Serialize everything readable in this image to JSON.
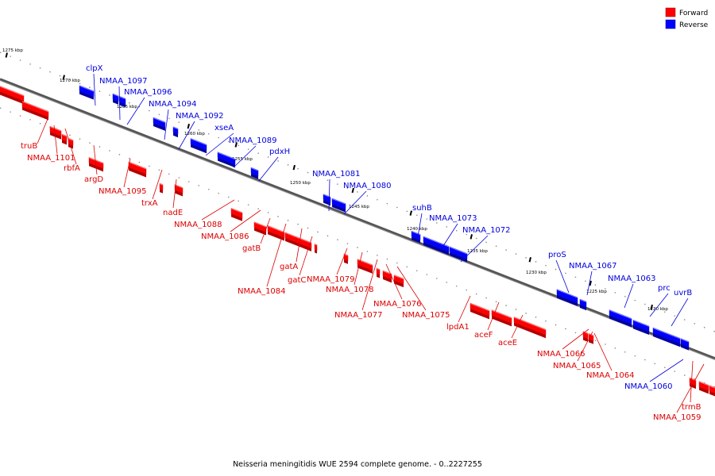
{
  "legend": {
    "forward_label": "Forward",
    "reverse_label": "Reverse",
    "forward_color": "#ff0000",
    "reverse_color": "#0000ff"
  },
  "caption": "Neisseria meningitidis WUE 2594 complete genome. - 0..2227255",
  "ticks": [
    "1275 kbp",
    "1270 kbp",
    "1265 kbp",
    "1260 kbp",
    "1255 kbp",
    "1250 kbp",
    "1245 kbp",
    "1240 kbp",
    "1235 kbp",
    "1230 kbp",
    "1225 kbp",
    "1220 kbp"
  ],
  "forward_labels": [
    "truB",
    "NMAA_1101",
    "rbfA",
    "argD",
    "NMAA_1095",
    "trxA",
    "nadE",
    "NMAA_1088",
    "NMAA_1086",
    "gatB",
    "NMAA_1084",
    "gatA",
    "gatC",
    "NMAA_1079",
    "NMAA_1078",
    "NMAA_1077",
    "NMAA_1076",
    "NMAA_1075",
    "lpdA1",
    "aceF",
    "aceE",
    "NMAA_1066",
    "NMAA_1065",
    "NMAA_1064",
    "trmB",
    "NMAA_1059"
  ],
  "reverse_labels": [
    "clpX",
    "NMAA_1097",
    "NMAA_1096",
    "NMAA_1094",
    "NMAA_1092",
    "xseA",
    "NMAA_1089",
    "pdxH",
    "NMAA_1081",
    "NMAA_1080",
    "suhB",
    "NMAA_1073",
    "NMAA_1072",
    "proS",
    "NMAA_1067",
    "NMAA_1063",
    "prc",
    "uvrB",
    "NMAA_1060"
  ]
}
